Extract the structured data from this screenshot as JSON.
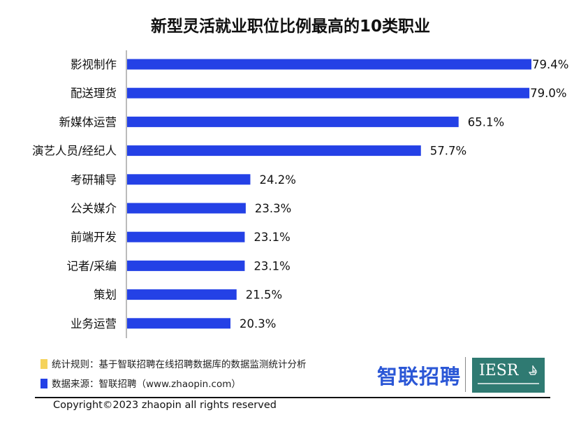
{
  "chart_data": {
    "type": "bar",
    "orientation": "horizontal",
    "title": "新型灵活就业职位比例最高的10类职业",
    "categories": [
      "影视制作",
      "配送理货",
      "新媒体运营",
      "演艺人员/经纪人",
      "考研辅导",
      "公关媒介",
      "前端开发",
      "记者/采编",
      "策划",
      "业务运营"
    ],
    "values": [
      79.4,
      79.0,
      65.1,
      57.7,
      24.2,
      23.3,
      23.1,
      23.1,
      21.5,
      20.3
    ],
    "value_labels": [
      "79.4%",
      "79.0%",
      "65.1%",
      "57.7%",
      "24.2%",
      "23.3%",
      "23.1%",
      "23.1%",
      "21.5%",
      "20.3%"
    ],
    "xlim": [
      0,
      80
    ],
    "bar_color": "#2441e6",
    "axis_color": "#bbbbbb",
    "grid": false,
    "legend": "none"
  },
  "notes": {
    "rule_text": "统计规则：基于智联招聘在线招聘数据库的数据监测统计分析",
    "rule_color": "#f5d35c",
    "source_text": "数据来源：智联招聘（www.zhaopin.com）",
    "source_color": "#2441e6"
  },
  "logos": {
    "zhaopin": "智联招聘",
    "iesr": "IESR"
  },
  "footer": {
    "copyright": "Copyright©2023 zhaopin all rights reserved"
  }
}
